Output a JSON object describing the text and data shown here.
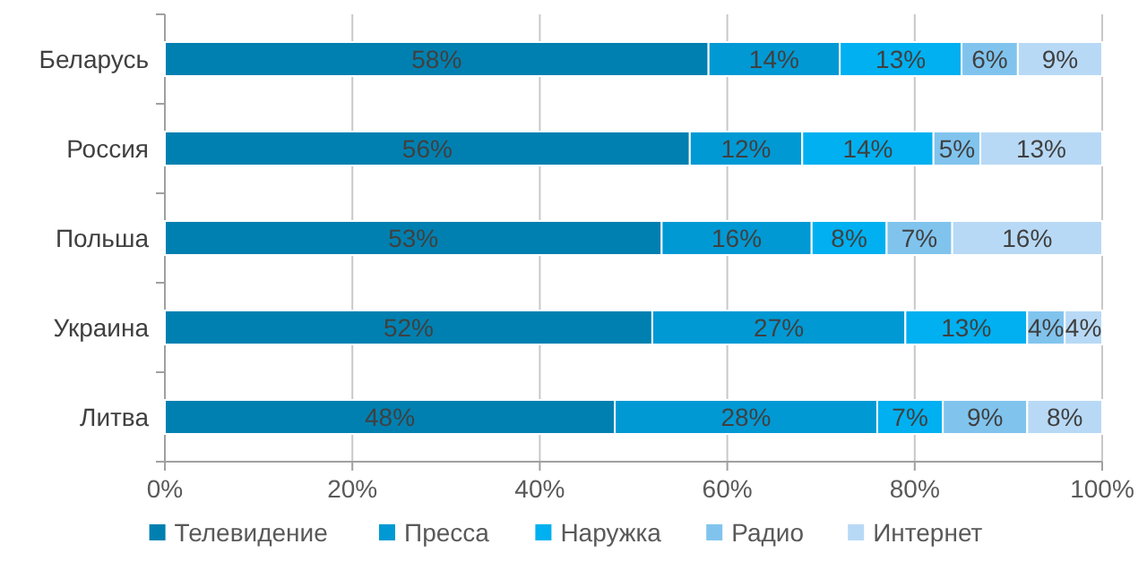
{
  "chart_data": {
    "type": "bar",
    "orientation": "horizontal",
    "stacked": true,
    "categories": [
      "Беларусь",
      "Россия",
      "Польша",
      "Украина",
      "Литва"
    ],
    "series": [
      {
        "name": "Телевидение",
        "color": "#0080b0",
        "values": [
          58,
          56,
          53,
          52,
          48
        ],
        "value_labels": [
          "58%",
          "56%",
          "53%",
          "52%",
          "48%"
        ]
      },
      {
        "name": "Пресса",
        "color": "#0099d4",
        "values": [
          14,
          12,
          16,
          27,
          28
        ],
        "value_labels": [
          "14%",
          "12%",
          "16%",
          "27%",
          "28%"
        ]
      },
      {
        "name": "Наружка",
        "color": "#00b0f0",
        "values": [
          13,
          14,
          8,
          13,
          7
        ],
        "value_labels": [
          "13%",
          "14%",
          "8%",
          "13%",
          "7%"
        ]
      },
      {
        "name": "Радио",
        "color": "#80c4ee",
        "values": [
          6,
          5,
          7,
          4,
          9
        ],
        "value_labels": [
          "6%",
          "5%",
          "7%",
          "4%",
          "9%"
        ]
      },
      {
        "name": "Интернет",
        "color": "#b8d9f5",
        "values": [
          9,
          13,
          16,
          4,
          8
        ],
        "value_labels": [
          "9%",
          "13%",
          "16%",
          "4%",
          "8%"
        ]
      }
    ],
    "xlim": [
      0,
      100
    ],
    "xticks": [
      {
        "value": 0,
        "label": "0%"
      },
      {
        "value": 20,
        "label": "20%"
      },
      {
        "value": 40,
        "label": "40%"
      },
      {
        "value": 60,
        "label": "60%"
      },
      {
        "value": 80,
        "label": "80%"
      },
      {
        "value": 100,
        "label": "100%"
      }
    ],
    "grid": "x",
    "legend": "bottom"
  }
}
